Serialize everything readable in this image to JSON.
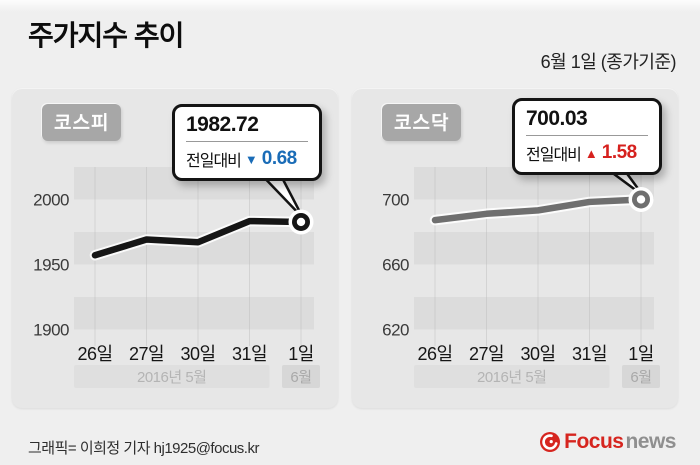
{
  "page": {
    "title": "주가지수 추이",
    "date_note": "6월 1일 (종가기준)"
  },
  "charts": [
    {
      "badge": "코스피",
      "callout": {
        "value": "1982.72",
        "label": "전일대비",
        "arrow": "▼",
        "change": "0.68"
      },
      "colors": {
        "line": "#161616",
        "change": "#1a6cb7"
      }
    },
    {
      "badge": "코스닥",
      "callout": {
        "value": "700.03",
        "label": "전일대비",
        "arrow": "▲",
        "change": "1.58"
      },
      "colors": {
        "line": "#6f6f6f",
        "change": "#d6211e"
      }
    }
  ],
  "chart_data": [
    {
      "type": "line",
      "title": "코스피",
      "categories": [
        "26일",
        "27일",
        "30일",
        "31일",
        "1일"
      ],
      "values": [
        1957.1,
        1969.2,
        1967.1,
        1983.4,
        1982.72
      ],
      "yticks": [
        2000,
        1950,
        1900
      ],
      "ylim": [
        1890,
        2025
      ],
      "xlabel_groups": [
        {
          "label": "2016년  5월",
          "from": 0,
          "to": 3
        },
        {
          "label": "6월",
          "from": 4,
          "to": 4
        }
      ],
      "last_point_label": "1982.72",
      "change_note": "전일대비 ▼0.68",
      "grid": "horizontal-bands",
      "legend": "none"
    },
    {
      "type": "line",
      "title": "코스닥",
      "categories": [
        "26일",
        "27일",
        "30일",
        "31일",
        "1일"
      ],
      "values": [
        687.3,
        691.2,
        693.3,
        698.5,
        700.03
      ],
      "yticks": [
        700,
        660,
        620
      ],
      "ylim": [
        608,
        722
      ],
      "xlabel_groups": [
        {
          "label": "2016년  5월",
          "from": 0,
          "to": 3
        },
        {
          "label": "6월",
          "from": 4,
          "to": 4
        }
      ],
      "last_point_label": "700.03",
      "change_note": "전일대비 ▲1.58",
      "grid": "horizontal-bands",
      "legend": "none"
    }
  ],
  "footer": {
    "credit": "그래픽= 이희정 기자 hj1925@focus.kr",
    "logo": {
      "brand": "Focus",
      "suffix": "news"
    }
  }
}
